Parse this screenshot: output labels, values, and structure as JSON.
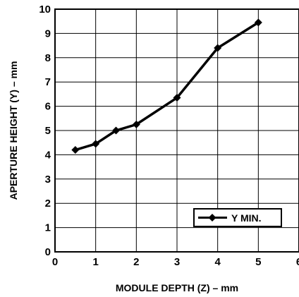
{
  "chart_data": {
    "type": "line",
    "title": "",
    "xlabel": "MODULE DEPTH (Z) – mm",
    "ylabel": "APERTURE HEIGHT (Y) – mm",
    "xlim": [
      0,
      6
    ],
    "ylim": [
      0,
      10
    ],
    "xticks": [
      "0",
      "1",
      "2",
      "3",
      "4",
      "5",
      "6"
    ],
    "yticks": [
      "0",
      "1",
      "2",
      "3",
      "4",
      "5",
      "6",
      "7",
      "8",
      "9",
      "10"
    ],
    "grid": true,
    "legend_position": "bottom-right",
    "series": [
      {
        "name": "Y MIN.",
        "marker": "diamond",
        "color": "#000000",
        "x": [
          0.5,
          1,
          1.5,
          2,
          3,
          4,
          5
        ],
        "y": [
          4.2,
          4.45,
          5.0,
          5.25,
          6.35,
          8.4,
          9.45
        ]
      }
    ]
  }
}
